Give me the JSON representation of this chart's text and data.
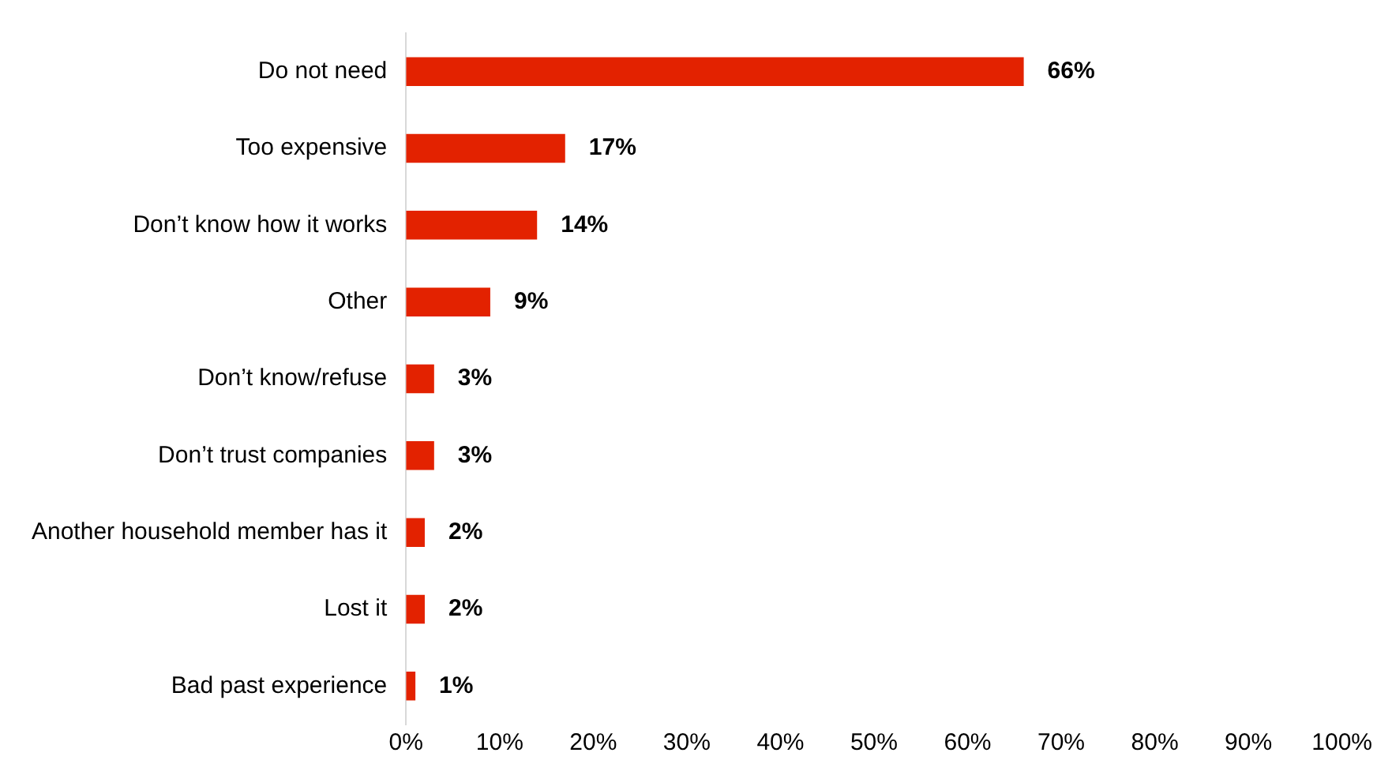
{
  "chart_data": {
    "type": "bar",
    "orientation": "horizontal",
    "categories": [
      "Do not need",
      "Too expensive",
      "Don’t know how it works",
      "Other",
      "Don’t know/refuse",
      "Don’t trust companies",
      "Another household member has it",
      "Lost it",
      "Bad past experience"
    ],
    "values": [
      66,
      17,
      14,
      9,
      3,
      3,
      2,
      2,
      1
    ],
    "value_labels": [
      "66%",
      "17%",
      "14%",
      "9%",
      "3%",
      "3%",
      "2%",
      "2%",
      "1%"
    ],
    "color": "#e32200",
    "xlim": [
      0,
      100
    ],
    "xticks": [
      {
        "value": 0,
        "label": "0%"
      },
      {
        "value": 10,
        "label": "10%"
      },
      {
        "value": 20,
        "label": "20%"
      },
      {
        "value": 30,
        "label": "30%"
      },
      {
        "value": 40,
        "label": "40%"
      },
      {
        "value": 50,
        "label": "50%"
      },
      {
        "value": 60,
        "label": "60%"
      },
      {
        "value": 70,
        "label": "70%"
      },
      {
        "value": 80,
        "label": "80%"
      },
      {
        "value": 90,
        "label": "90%"
      },
      {
        "value": 100,
        "label": "100%"
      }
    ]
  }
}
